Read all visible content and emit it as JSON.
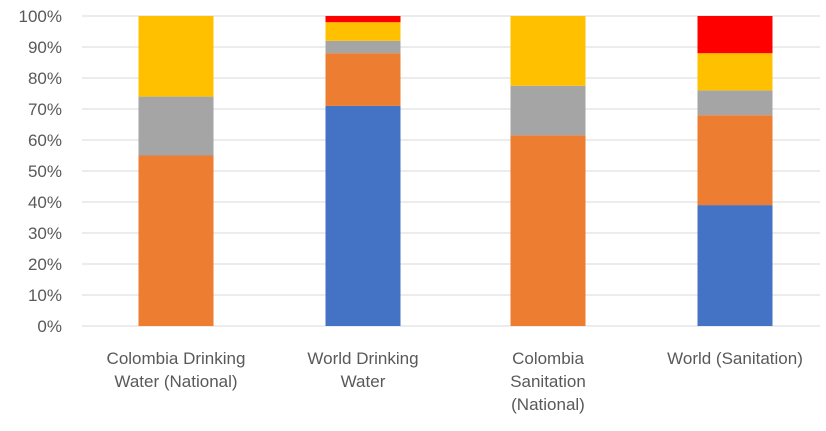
{
  "chart_data": {
    "type": "bar",
    "stacked": true,
    "orientation": "vertical",
    "categories": [
      [
        "Colombia Drinking",
        "Water (National)"
      ],
      [
        "World Drinking",
        "Water"
      ],
      [
        "Colombia",
        "Sanitation",
        "(National)"
      ],
      [
        "World (Sanitation)"
      ]
    ],
    "series": [
      {
        "color": "#4472C4",
        "values": [
          0,
          71,
          0,
          39
        ]
      },
      {
        "color": "#ED7D31",
        "values": [
          55,
          17,
          61.5,
          29
        ]
      },
      {
        "color": "#A5A5A5",
        "values": [
          19,
          4,
          16,
          8
        ]
      },
      {
        "color": "#FFC000",
        "values": [
          26,
          6,
          22.5,
          12
        ]
      },
      {
        "color": "#FF0000",
        "values": [
          0,
          2,
          0,
          12
        ]
      }
    ],
    "y_ticks": [
      "0%",
      "10%",
      "20%",
      "30%",
      "40%",
      "50%",
      "60%",
      "70%",
      "80%",
      "90%",
      "100%"
    ],
    "ylim": [
      0,
      100
    ],
    "grid": true,
    "legend": "none"
  }
}
